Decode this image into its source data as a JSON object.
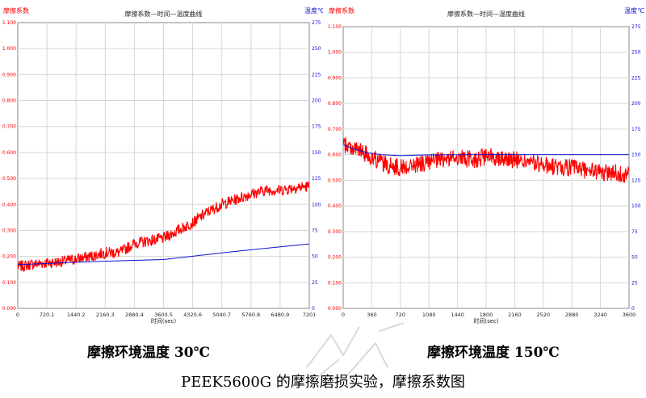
{
  "colors": {
    "friction": "#ff0000",
    "temperature": "#1010d0",
    "grid": "#d6d6d6",
    "plot_border": "#8a8a8a"
  },
  "chart_data": [
    {
      "type": "line",
      "title": "摩擦系数—时间—温度曲线",
      "ylabel_left": "摩擦系数",
      "ylabel_right": "温度℃",
      "xlabel": "时间(sec)",
      "xlim": [
        0,
        7201
      ],
      "ylim_left": [
        0,
        1.1
      ],
      "ylim_right": [
        0,
        275
      ],
      "x_ticks": [
        "0",
        "720.1",
        "1440.2",
        "2160.3",
        "2880.4",
        "3600.5",
        "4320.6",
        "5040.7",
        "5760.8",
        "6480.9",
        "7201"
      ],
      "y_ticks_left": [
        "0.000",
        "0.100",
        "0.200",
        "0.300",
        "0.400",
        "0.500",
        "0.600",
        "0.700",
        "0.800",
        "0.900",
        "1.000",
        "1.100"
      ],
      "y_ticks_right": [
        "0",
        "25",
        "50",
        "75",
        "100",
        "125",
        "150",
        "175",
        "200",
        "225",
        "250",
        "275"
      ],
      "grid": true,
      "series": [
        {
          "name": "摩擦系数",
          "axis": "left",
          "x": [
            0,
            360,
            720,
            1080,
            1440,
            1800,
            2160,
            2520,
            2880,
            3240,
            3600,
            3960,
            4320,
            4680,
            5040,
            5400,
            5760,
            6120,
            6480,
            6840,
            7201
          ],
          "values": [
            0.16,
            0.17,
            0.175,
            0.18,
            0.19,
            0.2,
            0.215,
            0.215,
            0.25,
            0.26,
            0.27,
            0.3,
            0.33,
            0.37,
            0.4,
            0.42,
            0.44,
            0.455,
            0.455,
            0.465,
            0.47
          ]
        },
        {
          "name": "温度",
          "axis": "right",
          "x": [
            0,
            1800,
            3600,
            5400,
            7201
          ],
          "values": [
            42,
            45,
            47,
            55,
            62
          ]
        }
      ]
    },
    {
      "type": "line",
      "title": "摩擦系数—时间—温度曲线",
      "ylabel_left": "摩擦系数",
      "ylabel_right": "温度℃",
      "xlabel": "时间(sec)",
      "xlim": [
        0,
        3600
      ],
      "ylim_left": [
        0,
        1.1
      ],
      "ylim_right": [
        0,
        275
      ],
      "x_ticks": [
        "0",
        "360",
        "720",
        "1080",
        "1440",
        "1800",
        "2160",
        "2520",
        "2880",
        "3240",
        "3600"
      ],
      "y_ticks_left": [
        "0.000",
        "0.100",
        "0.200",
        "0.300",
        "0.400",
        "0.500",
        "0.600",
        "0.700",
        "0.800",
        "0.900",
        "1.000",
        "1.100"
      ],
      "y_ticks_right": [
        "0",
        "25",
        "50",
        "75",
        "100",
        "125",
        "150",
        "175",
        "200",
        "225",
        "250",
        "275"
      ],
      "grid": true,
      "series": [
        {
          "name": "摩擦系数",
          "axis": "left",
          "x": [
            0,
            180,
            360,
            540,
            720,
            900,
            1080,
            1260,
            1440,
            1620,
            1800,
            1980,
            2160,
            2340,
            2520,
            2700,
            2880,
            3060,
            3240,
            3420,
            3600
          ],
          "values": [
            0.64,
            0.62,
            0.59,
            0.56,
            0.55,
            0.56,
            0.57,
            0.58,
            0.59,
            0.58,
            0.59,
            0.59,
            0.58,
            0.57,
            0.56,
            0.55,
            0.55,
            0.54,
            0.53,
            0.53,
            0.52
          ]
        },
        {
          "name": "温度",
          "axis": "right",
          "x": [
            0,
            120,
            300,
            480,
            720,
            900,
            1080,
            1800,
            2520,
            3600
          ],
          "values": [
            160,
            156,
            152,
            150,
            149,
            149.5,
            149.8,
            150,
            150,
            150
          ]
        }
      ]
    }
  ],
  "captions": {
    "left": "摩擦环境温度 30℃",
    "right": "摩擦环境温度 150℃",
    "figure": "PEEK5600G  的摩擦磨损实验，摩擦系数图"
  },
  "watermark_icon": "stamp-watermark"
}
